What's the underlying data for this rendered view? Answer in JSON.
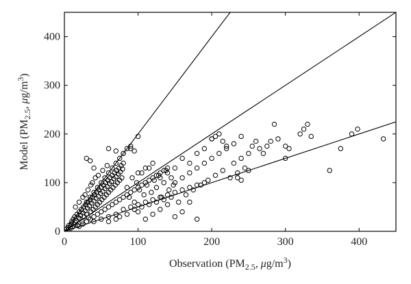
{
  "chart_data": {
    "type": "scatter",
    "title": "",
    "xlabel": {
      "prefix": "Observation (PM",
      "sub": "2.5",
      "mid": ", ",
      "mu": "μ",
      "unit": "g/m",
      "sup": "3",
      "suffix": ")"
    },
    "ylabel": {
      "prefix": "Model (PM",
      "sub": "2.5",
      "mid": ", ",
      "mu": "μ",
      "unit": "g/m",
      "sup": "3",
      "suffix": ")"
    },
    "xlim": [
      0,
      450
    ],
    "ylim": [
      0,
      450
    ],
    "xticks": [
      0,
      100,
      200,
      300,
      400
    ],
    "yticks": [
      0,
      100,
      200,
      300,
      400
    ],
    "grid": false,
    "legend": "none",
    "marker": "open-circle",
    "reference_lines": [
      {
        "slope": 2.0
      },
      {
        "slope": 1.0
      },
      {
        "slope": 0.5
      }
    ],
    "series": [
      {
        "points": [
          [
            3,
            5
          ],
          [
            5,
            8
          ],
          [
            6,
            12
          ],
          [
            8,
            6
          ],
          [
            9,
            15
          ],
          [
            10,
            20
          ],
          [
            11,
            9
          ],
          [
            12,
            25
          ],
          [
            13,
            14
          ],
          [
            14,
            30
          ],
          [
            15,
            18
          ],
          [
            16,
            22
          ],
          [
            17,
            35
          ],
          [
            18,
            12
          ],
          [
            19,
            28
          ],
          [
            20,
            40
          ],
          [
            21,
            26
          ],
          [
            22,
            33
          ],
          [
            23,
            45
          ],
          [
            24,
            20
          ],
          [
            25,
            38
          ],
          [
            26,
            50
          ],
          [
            27,
            30
          ],
          [
            28,
            42
          ],
          [
            29,
            55
          ],
          [
            30,
            35
          ],
          [
            31,
            48
          ],
          [
            32,
            60
          ],
          [
            33,
            28
          ],
          [
            34,
            52
          ],
          [
            35,
            65
          ],
          [
            36,
            40
          ],
          [
            37,
            58
          ],
          [
            38,
            70
          ],
          [
            39,
            45
          ],
          [
            40,
            62
          ],
          [
            41,
            75
          ],
          [
            42,
            50
          ],
          [
            43,
            68
          ],
          [
            44,
            80
          ],
          [
            45,
            55
          ],
          [
            46,
            72
          ],
          [
            47,
            85
          ],
          [
            48,
            60
          ],
          [
            49,
            78
          ],
          [
            50,
            90
          ],
          [
            51,
            65
          ],
          [
            52,
            82
          ],
          [
            53,
            95
          ],
          [
            54,
            70
          ],
          [
            55,
            88
          ],
          [
            56,
            100
          ],
          [
            57,
            75
          ],
          [
            58,
            92
          ],
          [
            59,
            105
          ],
          [
            60,
            80
          ],
          [
            61,
            98
          ],
          [
            62,
            110
          ],
          [
            63,
            85
          ],
          [
            64,
            102
          ],
          [
            65,
            115
          ],
          [
            66,
            90
          ],
          [
            67,
            108
          ],
          [
            68,
            120
          ],
          [
            69,
            95
          ],
          [
            70,
            112
          ],
          [
            71,
            125
          ],
          [
            72,
            100
          ],
          [
            73,
            118
          ],
          [
            74,
            130
          ],
          [
            75,
            105
          ],
          [
            76,
            122
          ],
          [
            77,
            135
          ],
          [
            78,
            110
          ],
          [
            79,
            128
          ],
          [
            80,
            140
          ],
          [
            20,
            10
          ],
          [
            25,
            15
          ],
          [
            30,
            20
          ],
          [
            35,
            25
          ],
          [
            40,
            30
          ],
          [
            45,
            35
          ],
          [
            50,
            40
          ],
          [
            55,
            45
          ],
          [
            60,
            50
          ],
          [
            65,
            55
          ],
          [
            70,
            60
          ],
          [
            75,
            65
          ],
          [
            80,
            70
          ],
          [
            85,
            75
          ],
          [
            90,
            80
          ],
          [
            95,
            85
          ],
          [
            100,
            90
          ],
          [
            105,
            95
          ],
          [
            110,
            100
          ],
          [
            115,
            105
          ],
          [
            120,
            110
          ],
          [
            125,
            115
          ],
          [
            130,
            120
          ],
          [
            135,
            125
          ],
          [
            140,
            130
          ],
          [
            40,
            20
          ],
          [
            50,
            25
          ],
          [
            60,
            30
          ],
          [
            70,
            35
          ],
          [
            80,
            45
          ],
          [
            90,
            50
          ],
          [
            100,
            55
          ],
          [
            110,
            60
          ],
          [
            120,
            65
          ],
          [
            130,
            70
          ],
          [
            140,
            75
          ],
          [
            150,
            80
          ],
          [
            160,
            85
          ],
          [
            170,
            90
          ],
          [
            180,
            95
          ],
          [
            190,
            100
          ],
          [
            30,
            60
          ],
          [
            35,
            70
          ],
          [
            40,
            80
          ],
          [
            45,
            90
          ],
          [
            50,
            100
          ],
          [
            55,
            110
          ],
          [
            60,
            120
          ],
          [
            65,
            130
          ],
          [
            70,
            140
          ],
          [
            75,
            150
          ],
          [
            80,
            160
          ],
          [
            85,
            170
          ],
          [
            90,
            175
          ],
          [
            100,
            195
          ],
          [
            85,
            90
          ],
          [
            88,
            70
          ],
          [
            92,
            110
          ],
          [
            95,
            60
          ],
          [
            98,
            100
          ],
          [
            102,
            85
          ],
          [
            105,
            120
          ],
          [
            108,
            75
          ],
          [
            112,
            95
          ],
          [
            115,
            130
          ],
          [
            118,
            80
          ],
          [
            122,
            105
          ],
          [
            125,
            90
          ],
          [
            128,
            115
          ],
          [
            132,
            70
          ],
          [
            135,
            100
          ],
          [
            138,
            125
          ],
          [
            142,
            85
          ],
          [
            145,
            110
          ],
          [
            148,
            95
          ],
          [
            100,
            120
          ],
          [
            110,
            130
          ],
          [
            120,
            140
          ],
          [
            130,
            110
          ],
          [
            140,
            120
          ],
          [
            150,
            130
          ],
          [
            160,
            150
          ],
          [
            170,
            140
          ],
          [
            180,
            160
          ],
          [
            190,
            170
          ],
          [
            200,
            190
          ],
          [
            150,
            100
          ],
          [
            160,
            110
          ],
          [
            170,
            120
          ],
          [
            180,
            130
          ],
          [
            190,
            140
          ],
          [
            200,
            150
          ],
          [
            210,
            160
          ],
          [
            220,
            170
          ],
          [
            230,
            140
          ],
          [
            240,
            150
          ],
          [
            155,
            60
          ],
          [
            165,
            75
          ],
          [
            175,
            85
          ],
          [
            185,
            95
          ],
          [
            195,
            105
          ],
          [
            205,
            115
          ],
          [
            215,
            125
          ],
          [
            225,
            110
          ],
          [
            235,
            120
          ],
          [
            245,
            130
          ],
          [
            180,
            25
          ],
          [
            170,
            60
          ],
          [
            160,
            40
          ],
          [
            150,
            30
          ],
          [
            140,
            55
          ],
          [
            130,
            45
          ],
          [
            120,
            35
          ],
          [
            110,
            25
          ],
          [
            100,
            40
          ],
          [
            30,
            150
          ],
          [
            35,
            145
          ],
          [
            40,
            130
          ],
          [
            60,
            170
          ],
          [
            70,
            165
          ],
          [
            80,
            160
          ],
          [
            90,
            170
          ],
          [
            95,
            165
          ],
          [
            200,
            190
          ],
          [
            205,
            195
          ],
          [
            210,
            200
          ],
          [
            215,
            185
          ],
          [
            220,
            175
          ],
          [
            230,
            180
          ],
          [
            240,
            195
          ],
          [
            250,
            160
          ],
          [
            255,
            175
          ],
          [
            260,
            185
          ],
          [
            265,
            170
          ],
          [
            270,
            160
          ],
          [
            275,
            175
          ],
          [
            280,
            185
          ],
          [
            285,
            220
          ],
          [
            290,
            190
          ],
          [
            300,
            175
          ],
          [
            235,
            110
          ],
          [
            240,
            105
          ],
          [
            250,
            125
          ],
          [
            300,
            150
          ],
          [
            305,
            170
          ],
          [
            320,
            200
          ],
          [
            325,
            210
          ],
          [
            330,
            220
          ],
          [
            335,
            195
          ],
          [
            360,
            125
          ],
          [
            375,
            170
          ],
          [
            390,
            200
          ],
          [
            398,
            210
          ],
          [
            433,
            190
          ],
          [
            15,
            50
          ],
          [
            20,
            60
          ],
          [
            25,
            70
          ],
          [
            28,
            75
          ],
          [
            32,
            85
          ],
          [
            36,
            95
          ],
          [
            38,
            100
          ],
          [
            42,
            110
          ],
          [
            46,
            115
          ],
          [
            52,
            125
          ],
          [
            58,
            135
          ],
          [
            60,
            20
          ],
          [
            70,
            25
          ],
          [
            75,
            30
          ],
          [
            85,
            35
          ],
          [
            95,
            45
          ],
          [
            105,
            50
          ],
          [
            115,
            55
          ],
          [
            125,
            60
          ],
          [
            135,
            65
          ],
          [
            145,
            70
          ]
        ]
      }
    ]
  }
}
